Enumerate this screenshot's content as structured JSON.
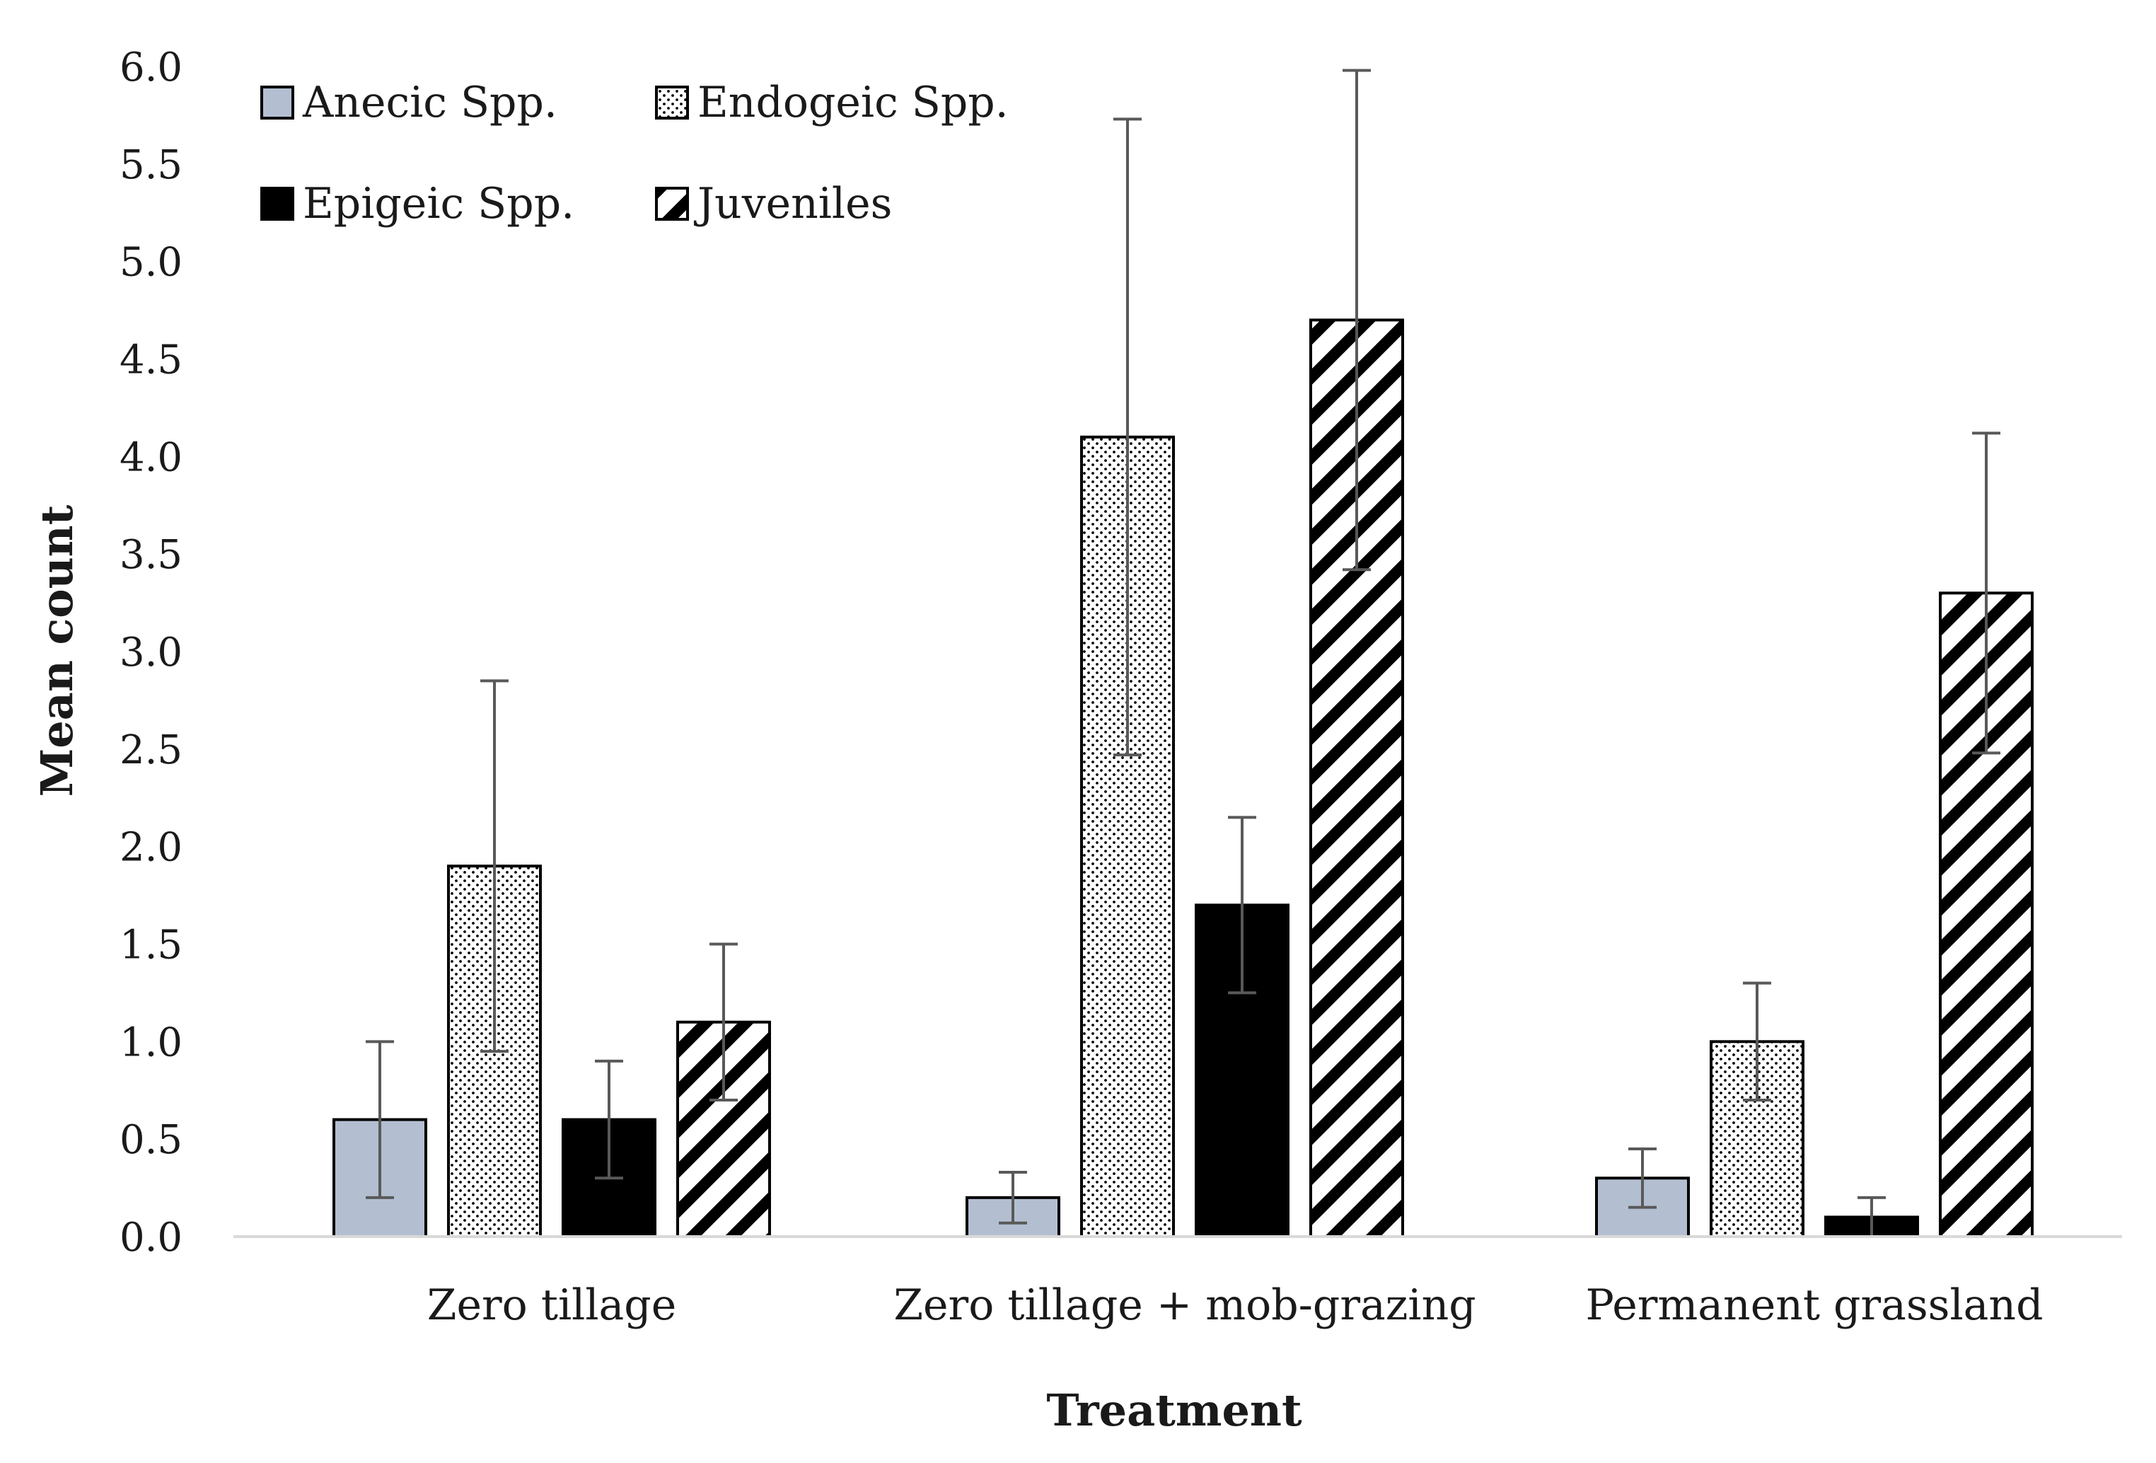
{
  "chart_data": {
    "type": "bar",
    "title": "",
    "xlabel": "Treatment",
    "ylabel": "Mean count",
    "ylim": [
      0,
      6
    ],
    "yticks": [
      "0.0",
      "0.5",
      "1.0",
      "1.5",
      "2.0",
      "2.5",
      "3.0",
      "3.5",
      "4.0",
      "4.5",
      "5.0",
      "5.5",
      "6.0"
    ],
    "grid": false,
    "legend_position": "top-left",
    "categories": [
      "Zero tillage",
      "Zero tillage + mob-grazing",
      "Permanent grassland"
    ],
    "series": [
      {
        "name": "Anecic Spp.",
        "pattern": "solid-gray",
        "color": "#b3bfd1",
        "values": [
          0.6,
          0.2,
          0.3
        ],
        "error": [
          0.4,
          0.13,
          0.15
        ]
      },
      {
        "name": "Endogeic Spp.",
        "pattern": "dots",
        "color": "#ffffff",
        "values": [
          1.9,
          4.1,
          1.0
        ],
        "error": [
          0.95,
          1.63,
          0.3
        ]
      },
      {
        "name": "Epigeic Spp.",
        "pattern": "solid-black",
        "color": "#000000",
        "values": [
          0.6,
          1.7,
          0.1
        ],
        "error": [
          0.3,
          0.45,
          0.1
        ]
      },
      {
        "name": "Juveniles",
        "pattern": "hatch",
        "color": "#ffffff",
        "values": [
          1.1,
          4.7,
          3.3
        ],
        "error": [
          0.4,
          1.28,
          0.82
        ]
      }
    ]
  }
}
